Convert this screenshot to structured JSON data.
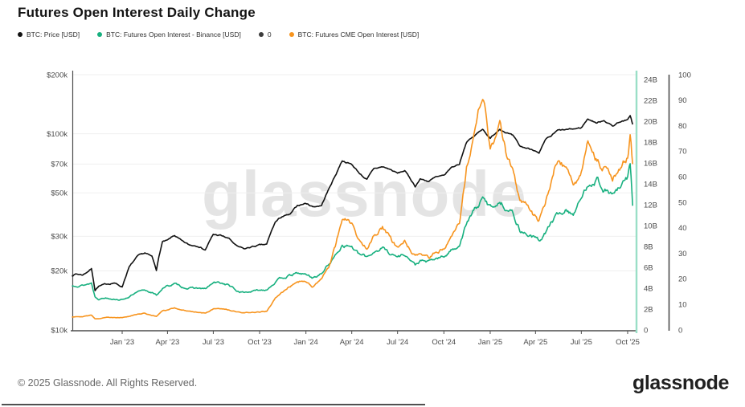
{
  "title": "Futures Open Interest Daily Change",
  "watermark": "glassnode",
  "footer": {
    "copyright": "© 2025 Glassnode. All Rights Reserved.",
    "logo": "glassnode"
  },
  "colors": {
    "price": "#111111",
    "binance_oi": "#17b07f",
    "zero_series": "#3c3c3c",
    "cme_oi": "#f7941e",
    "grid": "#efefef",
    "axis": "#4d4d4d",
    "right_axis_binance": "#9adfc6",
    "tick_text": "#4a4a4a"
  },
  "legend": {
    "items": [
      {
        "label": "BTC: Price [USD]",
        "color": "#111111"
      },
      {
        "label": "BTC: Futures Open Interest - Binance [USD]",
        "color": "#17b07f"
      },
      {
        "label": "0",
        "color": "#3c3c3c"
      },
      {
        "label": "BTC: Futures CME Open Interest [USD]",
        "color": "#f7941e"
      }
    ]
  },
  "chart_data": {
    "type": "line",
    "title": "Futures Open Interest Daily Change",
    "x_unit": "date",
    "legend_position": "top-left",
    "grid": "horizontal",
    "dates": [
      "2022-09-23",
      "2022-10-01",
      "2022-10-15",
      "2022-11-01",
      "2022-11-08",
      "2022-11-15",
      "2022-12-01",
      "2022-12-15",
      "2023-01-01",
      "2023-01-15",
      "2023-02-01",
      "2023-02-15",
      "2023-03-01",
      "2023-03-10",
      "2023-03-22",
      "2023-04-01",
      "2023-04-15",
      "2023-05-01",
      "2023-05-15",
      "2023-06-01",
      "2023-06-15",
      "2023-07-01",
      "2023-07-15",
      "2023-08-01",
      "2023-08-17",
      "2023-09-01",
      "2023-09-15",
      "2023-10-01",
      "2023-10-15",
      "2023-11-01",
      "2023-11-15",
      "2023-12-01",
      "2023-12-15",
      "2024-01-01",
      "2024-01-15",
      "2024-02-01",
      "2024-02-15",
      "2024-03-01",
      "2024-03-13",
      "2024-04-01",
      "2024-04-15",
      "2024-05-01",
      "2024-05-15",
      "2024-06-01",
      "2024-06-15",
      "2024-07-01",
      "2024-07-15",
      "2024-08-05",
      "2024-08-15",
      "2024-09-01",
      "2024-09-15",
      "2024-10-01",
      "2024-10-15",
      "2024-11-01",
      "2024-11-15",
      "2024-12-01",
      "2024-12-17",
      "2025-01-01",
      "2025-01-20",
      "2025-02-01",
      "2025-02-15",
      "2025-03-01",
      "2025-03-15",
      "2025-04-01",
      "2025-04-08",
      "2025-04-22",
      "2025-05-01",
      "2025-05-15",
      "2025-06-01",
      "2025-06-15",
      "2025-07-01",
      "2025-07-14",
      "2025-08-01",
      "2025-08-15",
      "2025-09-01",
      "2025-09-15",
      "2025-10-01",
      "2025-10-06",
      "2025-10-11"
    ],
    "series": [
      {
        "name": "BTC: Price [USD]",
        "axis": "price_log_usd",
        "color": "#111111",
        "values_k_usd": [
          18.9,
          19.3,
          19.1,
          20.5,
          16.0,
          16.7,
          17.1,
          17.4,
          16.6,
          20.9,
          23.7,
          24.6,
          23.6,
          20.3,
          28.1,
          28.5,
          30.3,
          28.1,
          27.0,
          26.9,
          25.6,
          30.6,
          30.3,
          29.2,
          26.6,
          25.8,
          26.5,
          27.0,
          27.2,
          35.4,
          37.9,
          38.7,
          43.0,
          44.2,
          42.5,
          43.1,
          51.9,
          62.4,
          73.1,
          69.7,
          63.4,
          58.3,
          66.3,
          67.8,
          66.0,
          62.8,
          64.8,
          54.0,
          58.8,
          57.3,
          60.0,
          60.8,
          67.0,
          70.2,
          91.0,
          97.3,
          106.1,
          94.4,
          106.0,
          102.0,
          97.5,
          86.0,
          84.3,
          82.5,
          79.2,
          93.4,
          96.5,
          103.7,
          104.6,
          105.5,
          107.2,
          119.1,
          113.4,
          117.4,
          109.3,
          115.4,
          117.0,
          124.0,
          111.5
        ]
      },
      {
        "name": "BTC: Futures Open Interest - Binance [USD]",
        "axis": "oi_billions_usd",
        "color": "#17b07f",
        "values_b_usd": [
          4.2,
          4.3,
          4.3,
          4.5,
          3.2,
          3.0,
          3.1,
          3.0,
          2.9,
          3.2,
          3.6,
          3.8,
          3.6,
          3.3,
          4.0,
          4.2,
          4.4,
          4.1,
          4.0,
          4.0,
          3.9,
          4.5,
          4.5,
          4.3,
          3.7,
          3.6,
          3.7,
          3.8,
          3.9,
          4.6,
          5.0,
          5.2,
          5.4,
          5.3,
          5.0,
          5.4,
          6.3,
          7.2,
          8.2,
          8.0,
          7.2,
          7.0,
          7.5,
          7.9,
          7.4,
          7.0,
          7.3,
          6.2,
          6.6,
          6.5,
          6.8,
          7.0,
          7.6,
          8.2,
          10.2,
          11.5,
          12.5,
          11.8,
          12.3,
          11.8,
          11.2,
          9.6,
          9.2,
          8.8,
          8.5,
          9.4,
          10.2,
          11.0,
          11.5,
          11.2,
          12.5,
          14.0,
          14.5,
          13.5,
          13.0,
          13.5,
          14.5,
          16.0,
          11.9
        ]
      },
      {
        "name": "0",
        "axis": "percent_0_100",
        "color": "#3c3c3c",
        "constant_value": 0
      },
      {
        "name": "BTC: Futures CME Open Interest [USD]",
        "axis": "oi_billions_usd",
        "color": "#f7941e",
        "values_b_usd": [
          1.25,
          1.3,
          1.3,
          1.4,
          1.1,
          1.1,
          1.2,
          1.2,
          1.2,
          1.3,
          1.5,
          1.6,
          1.4,
          1.3,
          1.8,
          1.9,
          2.1,
          1.9,
          1.8,
          1.7,
          1.6,
          2.0,
          2.0,
          1.9,
          1.7,
          1.6,
          1.7,
          1.7,
          1.8,
          3.0,
          3.6,
          4.2,
          4.8,
          4.6,
          4.2,
          4.8,
          6.0,
          8.2,
          10.8,
          10.2,
          8.6,
          8.0,
          9.2,
          9.8,
          8.8,
          7.8,
          8.4,
          7.0,
          7.2,
          6.8,
          7.4,
          7.8,
          9.2,
          10.5,
          15.5,
          18.5,
          22.8,
          17.5,
          19.5,
          17.0,
          15.5,
          12.5,
          12.0,
          10.8,
          10.5,
          12.5,
          14.0,
          16.5,
          15.5,
          14.0,
          15.0,
          18.5,
          16.5,
          15.5,
          14.5,
          15.5,
          16.5,
          18.4,
          15.9
        ]
      }
    ],
    "axes": {
      "price_log_usd": {
        "side": "left",
        "scale": "log",
        "range_k_usd": [
          10,
          200
        ],
        "ticks": [
          {
            "label": "$200k",
            "value": 200
          },
          {
            "label": "$100k",
            "value": 100
          },
          {
            "label": "$70k",
            "value": 70
          },
          {
            "label": "$50k",
            "value": 50
          },
          {
            "label": "$30k",
            "value": 30
          },
          {
            "label": "$20k",
            "value": 20
          },
          {
            "label": "$10k",
            "value": 10
          }
        ]
      },
      "oi_billions_usd": {
        "side": "right",
        "scale": "linear",
        "range_b_usd": [
          0,
          24
        ],
        "ticks": [
          {
            "label": "0",
            "value": 0
          },
          {
            "label": "2B",
            "value": 2
          },
          {
            "label": "4B",
            "value": 4
          },
          {
            "label": "6B",
            "value": 6
          },
          {
            "label": "8B",
            "value": 8
          },
          {
            "label": "10B",
            "value": 10
          },
          {
            "label": "12B",
            "value": 12
          },
          {
            "label": "14B",
            "value": 14
          },
          {
            "label": "16B",
            "value": 16
          },
          {
            "label": "18B",
            "value": 18
          },
          {
            "label": "20B",
            "value": 20
          },
          {
            "label": "22B",
            "value": 22
          },
          {
            "label": "24B",
            "value": 24
          }
        ]
      },
      "percent_0_100": {
        "side": "far-right",
        "scale": "linear",
        "range": [
          0,
          100
        ],
        "ticks": [
          {
            "label": "0",
            "value": 0
          },
          {
            "label": "10",
            "value": 10
          },
          {
            "label": "20",
            "value": 20
          },
          {
            "label": "30",
            "value": 30
          },
          {
            "label": "40",
            "value": 40
          },
          {
            "label": "50",
            "value": 50
          },
          {
            "label": "60",
            "value": 60
          },
          {
            "label": "70",
            "value": 70
          },
          {
            "label": "80",
            "value": 80
          },
          {
            "label": "90",
            "value": 90
          },
          {
            "label": "100",
            "value": 100
          }
        ]
      },
      "x": {
        "ticks": [
          {
            "label": "Jan '23",
            "date": "2023-01-01"
          },
          {
            "label": "Apr '23",
            "date": "2023-04-01"
          },
          {
            "label": "Jul '23",
            "date": "2023-07-01"
          },
          {
            "label": "Oct '23",
            "date": "2023-10-01"
          },
          {
            "label": "Jan '24",
            "date": "2024-01-01"
          },
          {
            "label": "Apr '24",
            "date": "2024-04-01"
          },
          {
            "label": "Jul '24",
            "date": "2024-07-01"
          },
          {
            "label": "Oct '24",
            "date": "2024-10-01"
          },
          {
            "label": "Jan '25",
            "date": "2025-01-01"
          },
          {
            "label": "Apr '25",
            "date": "2025-04-01"
          },
          {
            "label": "Jul '25",
            "date": "2025-07-01"
          },
          {
            "label": "Oct '25",
            "date": "2025-10-01"
          }
        ]
      }
    }
  }
}
